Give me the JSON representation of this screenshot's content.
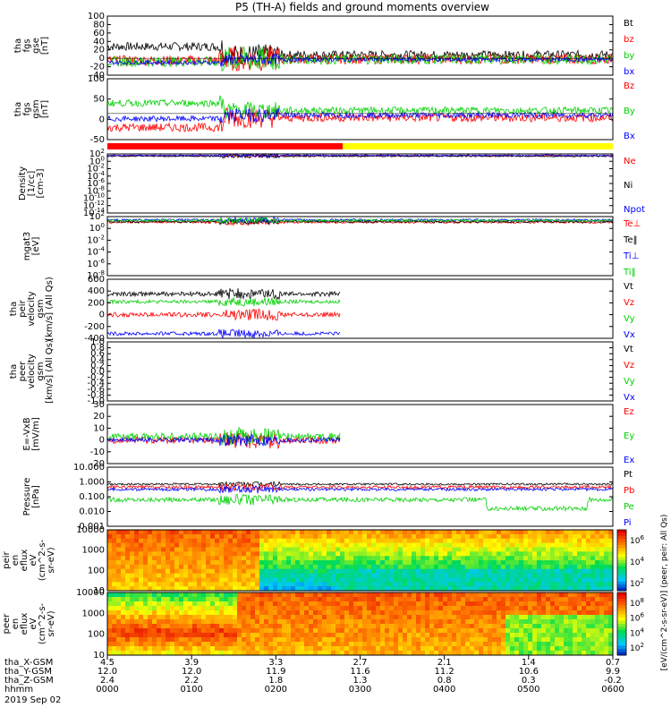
{
  "title": "P5 (TH-A) fields and ground moments overview",
  "date_label": "2019 Sep 02",
  "colors": {
    "black": "#000000",
    "red": "#ff0000",
    "green": "#00d000",
    "blue": "#0000ff",
    "yellow": "#ffff00"
  },
  "chart_data": [
    {
      "type": "line",
      "name": "panel-fgs-gse",
      "ylabel": [
        "tha",
        "fgs",
        "gse",
        "[nT]"
      ],
      "yticks": [
        "100",
        "80",
        "60",
        "40",
        "20",
        "0",
        "-20",
        "-40"
      ],
      "ylim": [
        -40,
        100
      ],
      "series": [
        {
          "name": "Bt",
          "color": "black",
          "level": 28,
          "amp": 10
        },
        {
          "name": "bz",
          "color": "red",
          "level": -5,
          "amp": 12
        },
        {
          "name": "by",
          "color": "green",
          "level": -8,
          "amp": 12
        },
        {
          "name": "bx",
          "color": "blue",
          "level": -10,
          "amp": 5
        }
      ]
    },
    {
      "type": "line",
      "name": "panel-fgs-gsm",
      "ylabel": [
        "tha",
        "fgs",
        "gsm",
        "[nT]"
      ],
      "yticks": [
        "100",
        "50",
        "0",
        "-50"
      ],
      "ylim": [
        -75,
        100
      ],
      "series": [
        {
          "name": "Bz",
          "color": "red",
          "level": -40,
          "amp": 12
        },
        {
          "name": "By",
          "color": "green",
          "level": 30,
          "amp": 10
        },
        {
          "name": "Bx",
          "color": "blue",
          "level": -15,
          "amp": 8
        }
      ]
    },
    {
      "type": "line",
      "name": "panel-density",
      "ylabel": [
        "Density",
        "[1/cc]",
        "[cm-3]"
      ],
      "yticks": [
        "10^2",
        "10^0",
        "10^-2",
        "10^-4",
        "10^-6",
        "10^-8",
        "10^-10",
        "10^-12",
        "10^-14"
      ],
      "ylim": [
        -14,
        2
      ],
      "log": true,
      "series": [
        {
          "name": "Ne",
          "color": "red",
          "level": 1.5,
          "amp": 0.2
        },
        {
          "name": "Ni",
          "color": "black",
          "level": 1.4,
          "amp": 0.2
        },
        {
          "name": "Npot",
          "color": "blue",
          "level": 1.6,
          "amp": 0.2
        }
      ]
    },
    {
      "type": "line",
      "name": "panel-temperature",
      "ylabel": [
        "mgat3",
        "[eV]"
      ],
      "yticks": [
        "10^2",
        "10^0",
        "10^-2",
        "10^-4",
        "10^-6",
        "10^-8"
      ],
      "ylim": [
        -8,
        2.5
      ],
      "log": true,
      "series": [
        {
          "name": "Te⊥",
          "color": "red",
          "level": 1.5,
          "amp": 0.2
        },
        {
          "name": "Te‖",
          "color": "black",
          "level": 1.6,
          "amp": 0.2
        },
        {
          "name": "Ti⊥",
          "color": "blue",
          "level": 1.9,
          "amp": 0.2
        },
        {
          "name": "Ti‖",
          "color": "green",
          "level": 1.8,
          "amp": 0.2
        }
      ]
    },
    {
      "type": "line",
      "name": "panel-velocity-1",
      "ylabel": [
        "tha",
        "peir",
        "velocity",
        "gsm",
        "[km/s] (All Qs)"
      ],
      "yticks": [
        "600",
        "400",
        "200",
        "0",
        "-200",
        "-400"
      ],
      "ylim": [
        -400,
        600
      ],
      "series": [
        {
          "name": "Vt",
          "color": "black",
          "level": 350,
          "amp": 40
        },
        {
          "name": "Vz",
          "color": "red",
          "level": 0,
          "amp": 40
        },
        {
          "name": "Vy",
          "color": "green",
          "level": 220,
          "amp": 30
        },
        {
          "name": "Vx",
          "color": "blue",
          "level": -320,
          "amp": 30
        }
      ]
    },
    {
      "type": "line",
      "name": "panel-velocity-2",
      "ylabel": [
        "tha",
        "peer",
        "velocity",
        "gsm",
        "[km/s] (All Qs)"
      ],
      "yticks": [
        "1.0",
        "0.8",
        "0.6",
        "0.4",
        "0.2",
        "0.0",
        "-0.2",
        "-0.4",
        "-0.6",
        "-0.8",
        "-1.0"
      ],
      "ylim": [
        -1,
        1
      ],
      "series": [
        {
          "name": "Vt",
          "color": "black"
        },
        {
          "name": "Vz",
          "color": "red"
        },
        {
          "name": "Vy",
          "color": "green"
        },
        {
          "name": "Vx",
          "color": "blue"
        }
      ]
    },
    {
      "type": "line",
      "name": "panel-efield",
      "ylabel": [
        "E=-VxB",
        "[mV/m]"
      ],
      "yticks": [
        "30",
        "20",
        "10",
        "0",
        "-10",
        "-20"
      ],
      "ylim": [
        -20,
        30
      ],
      "series": [
        {
          "name": "Ez",
          "color": "red",
          "level": 0,
          "amp": 3
        },
        {
          "name": "Ey",
          "color": "green",
          "level": 3,
          "amp": 3
        },
        {
          "name": "Ex",
          "color": "blue",
          "level": 0,
          "amp": 2
        }
      ]
    },
    {
      "type": "line",
      "name": "panel-pressure",
      "ylabel": [
        "Pressure",
        "[nPa]"
      ],
      "yticks": [
        "10.000",
        "1.000",
        "0.100",
        "0.010",
        "0.001"
      ],
      "ylim": [
        -3,
        1
      ],
      "log": true,
      "series": [
        {
          "name": "Pt",
          "color": "black",
          "level": -0.15,
          "amp": 0.07
        },
        {
          "name": "Pb",
          "color": "red",
          "level": -0.35,
          "amp": 0.1
        },
        {
          "name": "Pe",
          "color": "green",
          "level": -1.2,
          "amp": 0.15
        },
        {
          "name": "Pi",
          "color": "blue",
          "level": -0.5,
          "amp": 0.1
        }
      ]
    },
    {
      "type": "heatmap",
      "name": "panel-peir-spectrogram",
      "ylabel": [
        "tha",
        "peir",
        "en",
        "eflux",
        "eV",
        "(cm^2-s-",
        "sr-eV)"
      ],
      "yticks": [
        "10000",
        "1000",
        "100",
        "10"
      ],
      "colorbar_ticks": [
        "10^6",
        "10^4",
        "10^2"
      ]
    },
    {
      "type": "heatmap",
      "name": "panel-peer-spectrogram",
      "ylabel": [
        "tha",
        "peer",
        "en",
        "eflux",
        "eV",
        "(cm^2-s-",
        "sr-eV)"
      ],
      "yticks": [
        "10000",
        "1000",
        "100",
        "10"
      ],
      "colorbar_ticks": [
        "10^8",
        "10^6",
        "10^4",
        "10^2"
      ]
    }
  ],
  "colorbar_label": "[eV/(cm^2-s-sr-eV)]  (peer, peir: All Qs)",
  "x_axis": {
    "row_labels": [
      "tha_X-GSM",
      "tha_Y-GSM",
      "tha_Z-GSM",
      "hhmm"
    ],
    "columns": [
      {
        "x": "4.5",
        "y": "12.0",
        "z": "2.4",
        "t": "0000"
      },
      {
        "x": "3.9",
        "y": "12.0",
        "z": "2.2",
        "t": "0100"
      },
      {
        "x": "3.3",
        "y": "11.9",
        "z": "1.8",
        "t": "0200"
      },
      {
        "x": "2.7",
        "y": "11.6",
        "z": "1.3",
        "t": "0300"
      },
      {
        "x": "2.1",
        "y": "11.2",
        "z": "0.8",
        "t": "0400"
      },
      {
        "x": "1.4",
        "y": "10.6",
        "z": "0.3",
        "t": "0500"
      },
      {
        "x": "0.7",
        "y": "9.9",
        "z": "-0.2",
        "t": "0600"
      }
    ]
  }
}
